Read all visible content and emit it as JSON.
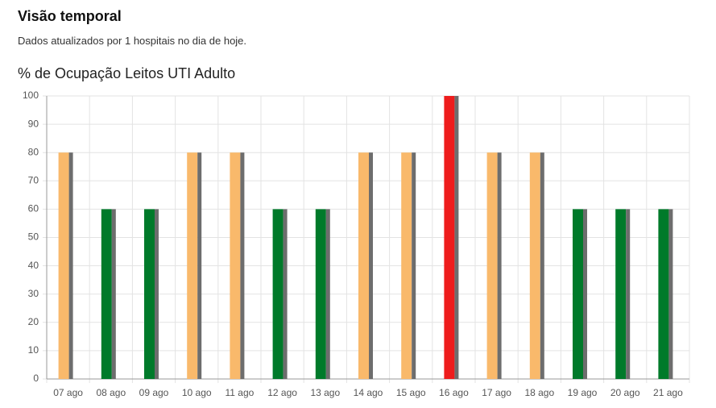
{
  "header": {
    "title": "Visão temporal",
    "subtitle": "Dados atualizados por 1 hospitais no dia de hoje."
  },
  "chart_data": {
    "type": "bar",
    "title": "% de Ocupação Leitos UTI Adulto",
    "categories": [
      "07 ago",
      "08 ago",
      "09 ago",
      "10 ago",
      "11 ago",
      "12 ago",
      "13 ago",
      "14 ago",
      "15 ago",
      "16 ago",
      "17 ago",
      "18 ago",
      "19 ago",
      "20 ago",
      "21 ago"
    ],
    "values": [
      80,
      60,
      60,
      80,
      80,
      60,
      60,
      80,
      80,
      100,
      80,
      80,
      60,
      60,
      60
    ],
    "colors": [
      "#f9b96b",
      "#007a2a",
      "#007a2a",
      "#f9b96b",
      "#f9b96b",
      "#007a2a",
      "#007a2a",
      "#f9b96b",
      "#f9b96b",
      "#ee1c1c",
      "#f9b96b",
      "#f9b96b",
      "#007a2a",
      "#007a2a",
      "#007a2a"
    ],
    "shadow_color": "#6d6d6d",
    "ylim": [
      0,
      100
    ],
    "yticks": [
      0,
      10,
      20,
      30,
      40,
      50,
      60,
      70,
      80,
      90,
      100
    ],
    "grid": true
  }
}
